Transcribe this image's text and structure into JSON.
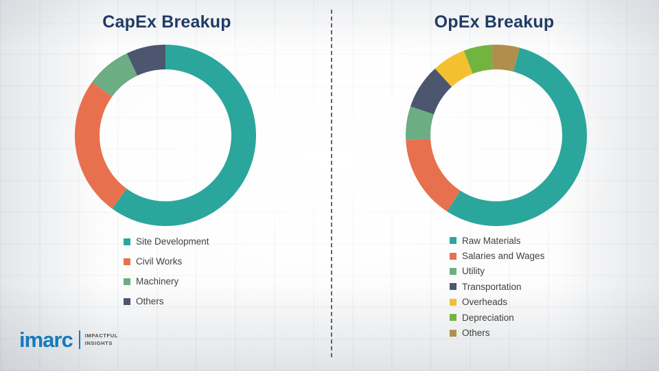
{
  "theme": {
    "title_color": "#1F3B66",
    "logo_blue": "#147BBD",
    "legend_text": "#404040",
    "divider_color": "#4A4A4A"
  },
  "chart_data": [
    {
      "type": "donut",
      "title": "CapEx Breakup",
      "labels": [
        "Site Development",
        "Civil Works",
        "Machinery",
        "Others"
      ],
      "values": [
        60,
        25,
        8,
        7
      ],
      "colors": [
        "#2BA69D",
        "#E7714E",
        "#6CAD83",
        "#4C566F"
      ],
      "rotation_deg": 0,
      "legend_position": "bottom-left",
      "data_labels_shown": false
    },
    {
      "type": "donut",
      "title": "OpEx Breakup",
      "labels": [
        "Raw Materials",
        "Salaries and Wages",
        "Utility",
        "Transportation",
        "Overheads",
        "Depreciation",
        "Others"
      ],
      "values": [
        55,
        15,
        6,
        8,
        6,
        5,
        5
      ],
      "colors": [
        "#2BA69D",
        "#E7714E",
        "#6CAD83",
        "#4C566F",
        "#F3C02F",
        "#71B440",
        "#B08F4D"
      ],
      "rotation_deg": 15,
      "legend_position": "bottom-left",
      "data_labels_shown": false
    }
  ],
  "logo": {
    "text": "imarc",
    "tagline_line1": "IMPACTFUL",
    "tagline_line2": "INSIGHTS"
  }
}
